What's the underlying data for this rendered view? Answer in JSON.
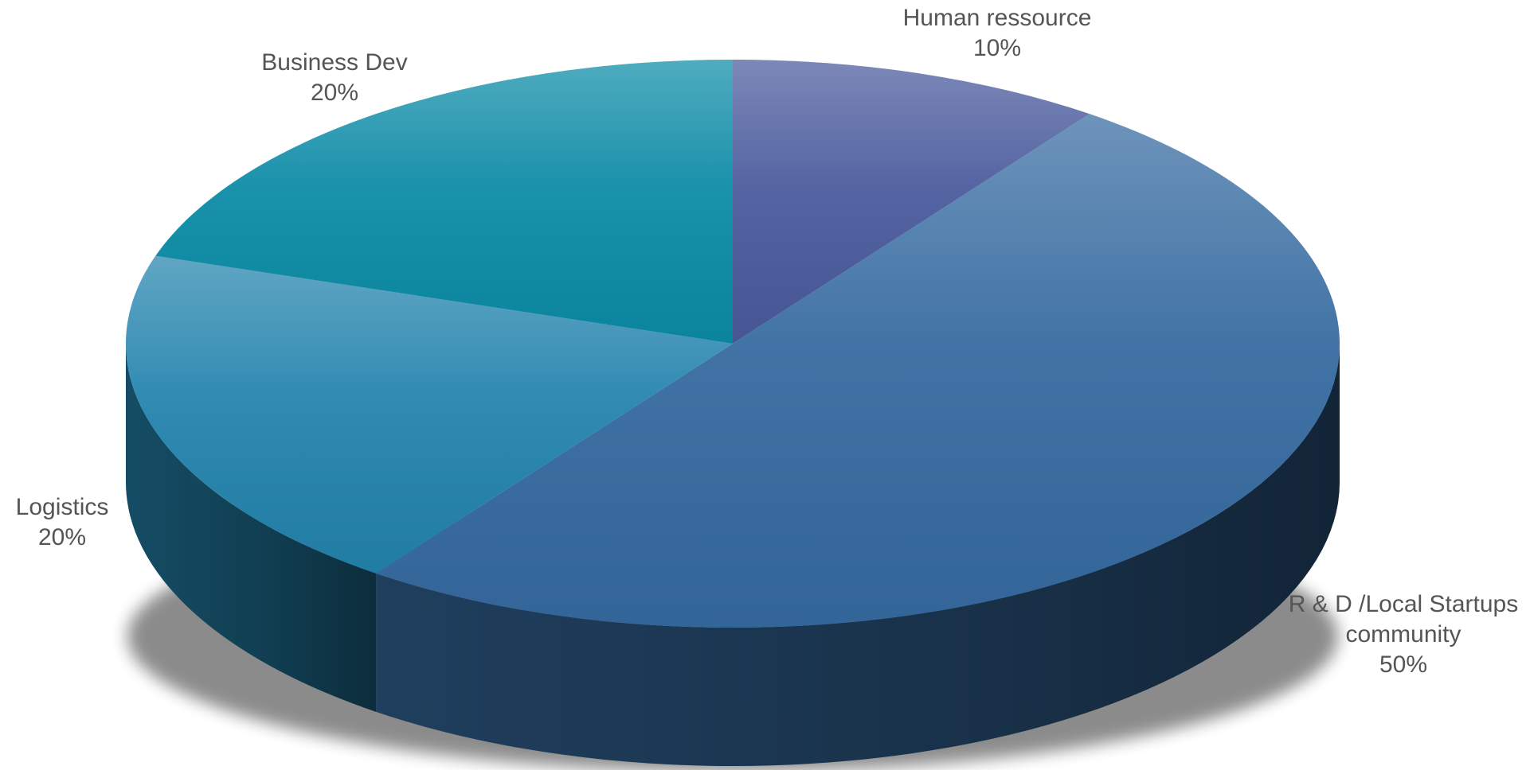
{
  "chart_data": {
    "type": "pie",
    "style": "3d",
    "title": "",
    "legend": "none",
    "slices": [
      {
        "name": "Human ressource",
        "label_lines": [
          "Human ressource"
        ],
        "value": 10,
        "percent_label": "10%",
        "color": "#4a5a9c"
      },
      {
        "name": "R & D /Local Startups community",
        "label_lines": [
          "R & D /Local Startups",
          "community"
        ],
        "value": 50,
        "percent_label": "50%",
        "color": "#356aa0"
      },
      {
        "name": "Logistics",
        "label_lines": [
          "Logistics"
        ],
        "value": 20,
        "percent_label": "20%",
        "color": "#2383ad"
      },
      {
        "name": "Business Dev",
        "label_lines": [
          "Business Dev"
        ],
        "value": 20,
        "percent_label": "20%",
        "color": "#0b8ba6"
      }
    ]
  }
}
